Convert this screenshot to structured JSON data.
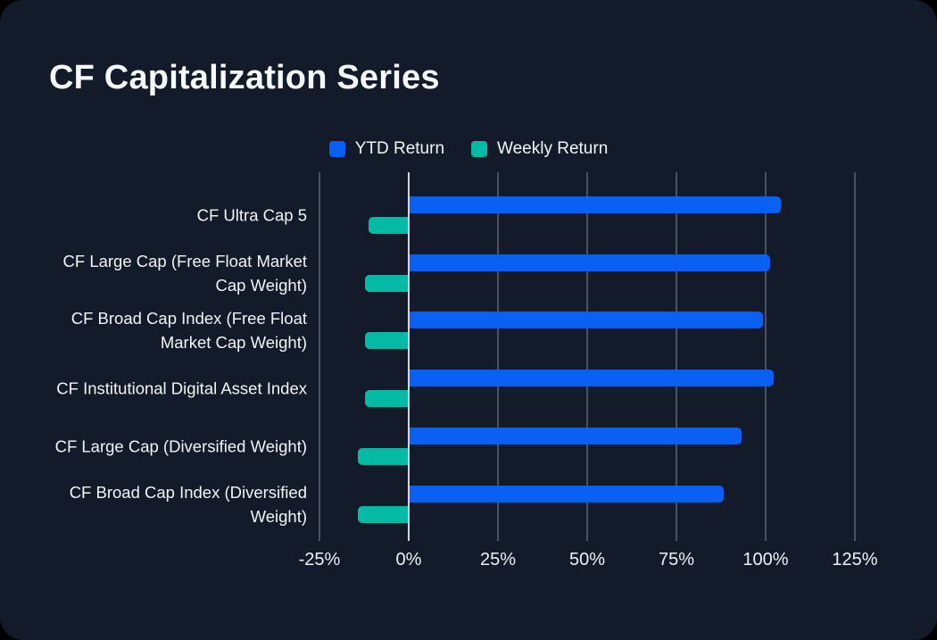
{
  "title": "CF Capitalization Series",
  "legend": [
    {
      "label": "YTD Return",
      "color": "#0b60f4"
    },
    {
      "label": "Weekly Return",
      "color": "#03bba4"
    }
  ],
  "chart_data": {
    "type": "bar",
    "orientation": "horizontal",
    "title": "CF Capitalization Series",
    "categories": [
      "CF Ultra Cap 5",
      "CF Large Cap (Free Float Market Cap Weight)",
      "CF Broad Cap Index (Free Float Market Cap Weight)",
      "CF Institutional Digital Asset Index",
      "CF Large Cap (Diversified Weight)",
      "CF Broad Cap Index (Diversified Weight)"
    ],
    "series": [
      {
        "name": "YTD Return",
        "color": "#0b60f4",
        "values": [
          104,
          101,
          99,
          102,
          93,
          88
        ]
      },
      {
        "name": "Weekly Return",
        "color": "#03bba4",
        "values": [
          -11,
          -12,
          -12,
          -12,
          -14,
          -14
        ]
      }
    ],
    "value_unit": "%",
    "x_ticks": [
      {
        "value": -25,
        "label": "-25%"
      },
      {
        "value": 0,
        "label": "0%"
      },
      {
        "value": 25,
        "label": "25%"
      },
      {
        "value": 50,
        "label": "50%"
      },
      {
        "value": 75,
        "label": "75%"
      },
      {
        "value": 100,
        "label": "100%"
      },
      {
        "value": 125,
        "label": "125%"
      }
    ],
    "xlim": [
      -25,
      125
    ],
    "grid": true,
    "legend_position": "top"
  },
  "colors": {
    "page_background": "#000000",
    "card_background": "#131b2b",
    "grid_line": "#4a5260",
    "zero_line": "#d2d6dc",
    "text": "#f2f4f6"
  }
}
